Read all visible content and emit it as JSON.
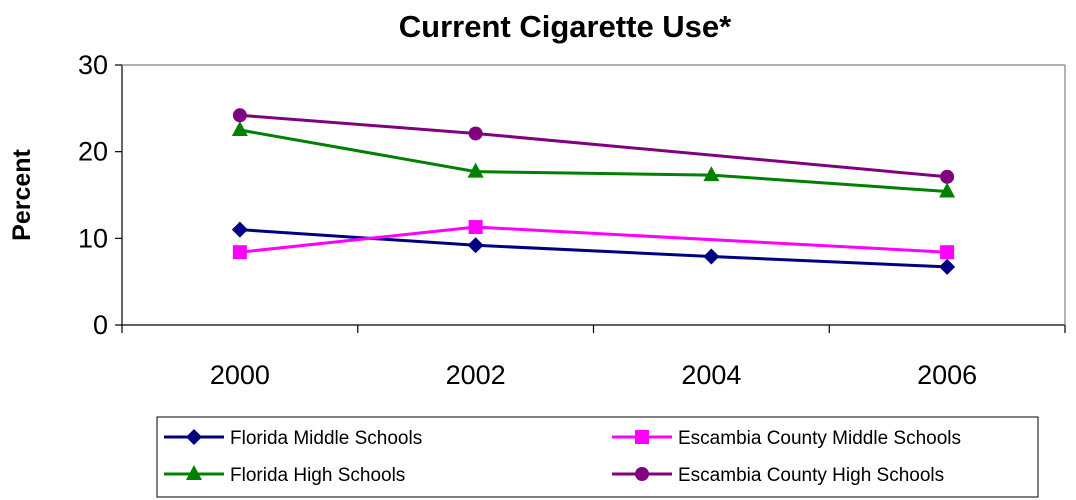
{
  "chart_data": {
    "type": "line",
    "title": "Current Cigarette Use*",
    "xlabel": "",
    "ylabel": "Percent",
    "categories": [
      "2000",
      "2002",
      "2004",
      "2006"
    ],
    "ylim": [
      0,
      30
    ],
    "yticks": [
      "0",
      "10",
      "20",
      "30"
    ],
    "grid": false,
    "legend_position": "bottom",
    "series": [
      {
        "name": "Florida Middle Schools",
        "values": [
          11.0,
          9.2,
          7.9,
          6.7
        ],
        "color": "#000080",
        "marker": "diamond"
      },
      {
        "name": "Escambia County Middle Schools",
        "values": [
          8.4,
          11.3,
          null,
          8.4
        ],
        "color": "#FF00FF",
        "marker": "square"
      },
      {
        "name": "Florida High Schools",
        "values": [
          22.5,
          17.7,
          17.3,
          15.4
        ],
        "color": "#008000",
        "marker": "triangle"
      },
      {
        "name": "Escambia County High Schools",
        "values": [
          24.2,
          22.1,
          null,
          17.1
        ],
        "color": "#800080",
        "marker": "circle"
      }
    ]
  }
}
